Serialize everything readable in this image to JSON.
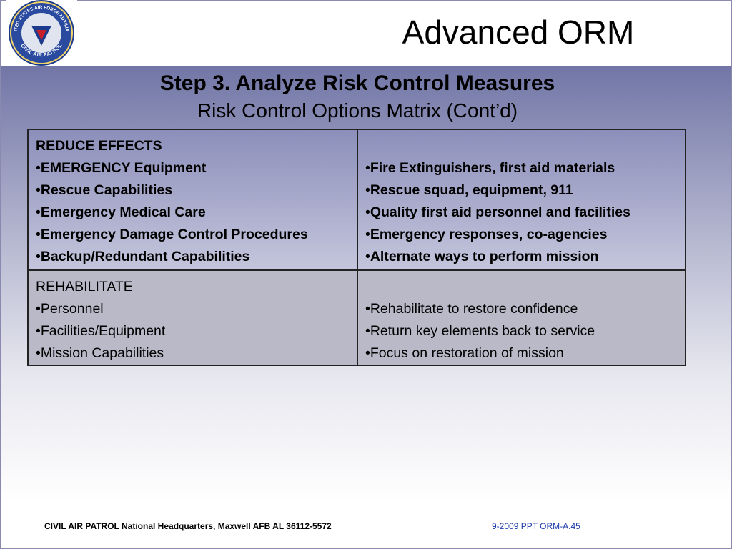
{
  "header": {
    "title": "Advanced ORM",
    "logo": {
      "top": "UNITED STATES AIR FORCE AUXILIARY",
      "bottom": "CIVIL AIR PATROL"
    }
  },
  "heading": {
    "title": "Step 3. Analyze Risk Control Measures",
    "subtitle": "Risk Control Options Matrix (Cont’d)"
  },
  "table": {
    "rows": [
      {
        "label": "REDUCE EFFECTS",
        "left": [
          "EMERGENCY Equipment",
          "Rescue Capabilities",
          "Emergency Medical Care",
          "Emergency Damage Control Procedures",
          "Backup/Redundant Capabilities"
        ],
        "right": [
          "Fire Extinguishers, first aid materials",
          "Rescue squad, equipment, 911",
          "Quality first aid personnel and facilities",
          "Emergency responses, co-agencies",
          "Alternate ways to perform mission"
        ]
      },
      {
        "label": "REHABILITATE",
        "left": [
          "Personnel",
          "Facilities/Equipment",
          "Mission Capabilities"
        ],
        "right": [
          "Rehabilitate to restore confidence",
          "Return key elements back to service",
          "Focus on restoration of mission"
        ]
      }
    ]
  },
  "footer": {
    "left": "CIVIL AIR PATROL National Headquarters, Maxwell AFB AL 36112-5572",
    "right": "9-2009 PPT ORM-A.45"
  }
}
